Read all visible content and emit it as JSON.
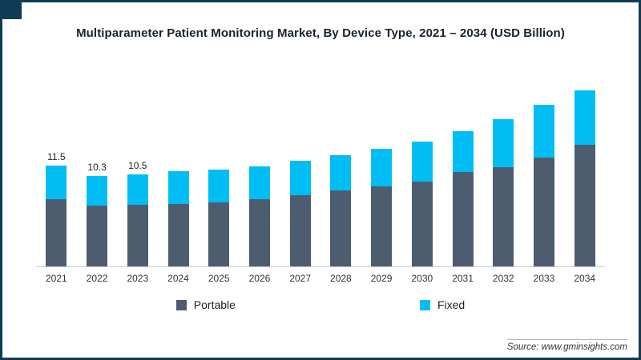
{
  "frame": {
    "border_color": "#0e3c55"
  },
  "title": "Multiparameter Patient Monitoring Market, By Device Type, 2021 – 2034 (USD Billion)",
  "source": "Source: www.gminsights.com",
  "chart_data": {
    "type": "bar",
    "stacked": true,
    "title": "Multiparameter Patient Monitoring Market, By Device Type, 2021 – 2034 (USD Billion)",
    "xlabel": "",
    "ylabel": "USD Billion",
    "ylim": [
      0,
      21
    ],
    "grid": false,
    "legend_position": "bottom",
    "categories": [
      "2021",
      "2022",
      "2023",
      "2024",
      "2025",
      "2026",
      "2027",
      "2028",
      "2029",
      "2030",
      "2031",
      "2032",
      "2033",
      "2034"
    ],
    "series": [
      {
        "name": "Portable",
        "color": "#4d5d70",
        "values": [
          7.6,
          6.9,
          7.0,
          7.1,
          7.3,
          7.6,
          8.1,
          8.6,
          9.1,
          9.6,
          10.7,
          11.3,
          12.4,
          13.8
        ]
      },
      {
        "name": "Fixed",
        "color": "#00bdf3",
        "values": [
          3.9,
          3.4,
          3.5,
          3.7,
          3.7,
          3.8,
          3.9,
          4.0,
          4.3,
          4.6,
          4.7,
          5.4,
          6.0,
          6.2
        ]
      }
    ],
    "totals": [
      11.5,
      10.3,
      10.5,
      10.8,
      11.0,
      11.4,
      12.0,
      12.6,
      13.4,
      14.2,
      15.4,
      16.7,
      18.4,
      20.0
    ],
    "bar_value_labels": [
      "11.5",
      "10.3",
      "10.5",
      "",
      "",
      "",
      "",
      "",
      "",
      "",
      "",
      "",
      "",
      ""
    ]
  }
}
